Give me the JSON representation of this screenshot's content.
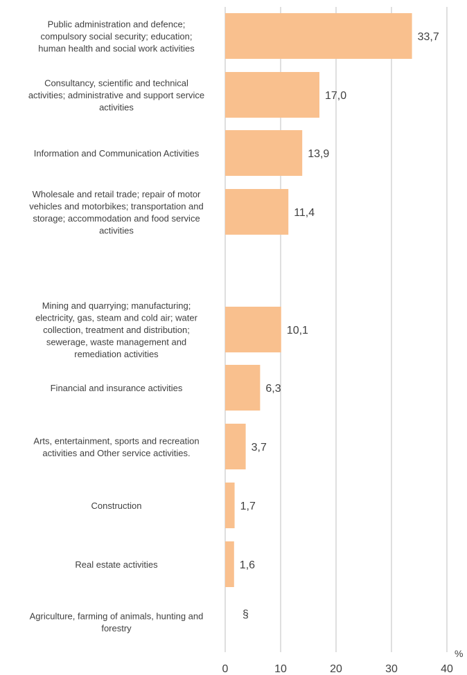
{
  "chart_data": {
    "type": "bar",
    "orientation": "horizontal",
    "categories": [
      [
        "Public administration and defence;",
        "compulsory social security; education;",
        "human health and social work activities"
      ],
      [
        "Consultancy, scientific and technical",
        "activities; administrative and support service",
        "activities"
      ],
      [
        "Information and Communication Activities"
      ],
      [
        "Wholesale and retail trade; repair of motor",
        "vehicles and motorbikes; transportation and",
        "storage; accommodation and food service",
        "activities"
      ],
      [
        "Mining and quarrying; manufacturing;",
        "electricity, gas, steam and cold air; water",
        "collection, treatment and distribution;",
        "sewerage, waste management and",
        "remediation activities"
      ],
      [
        "Financial and insurance activities"
      ],
      [
        "Arts, entertainment, sports and recreation",
        "activities and Other service activities."
      ],
      [
        "Construction"
      ],
      [
        "Real estate activities"
      ],
      [
        "Agriculture, farming of animals, hunting and",
        "forestry"
      ]
    ],
    "values": [
      33.7,
      17.0,
      13.9,
      11.4,
      10.1,
      6.3,
      3.7,
      1.7,
      1.6,
      null
    ],
    "value_labels": [
      "33,7",
      "17,0",
      "13,9",
      "11,4",
      "10,1",
      "6,3",
      "3,7",
      "1,7",
      "1,6",
      "§"
    ],
    "xlim": [
      0,
      40
    ],
    "xticks": [
      "0",
      "10",
      "20",
      "30",
      "40"
    ],
    "xunit": "%",
    "grid": true,
    "bar_color": "#F9C08E",
    "grid_color": "#BFBFBF",
    "text_color": "#404040"
  }
}
